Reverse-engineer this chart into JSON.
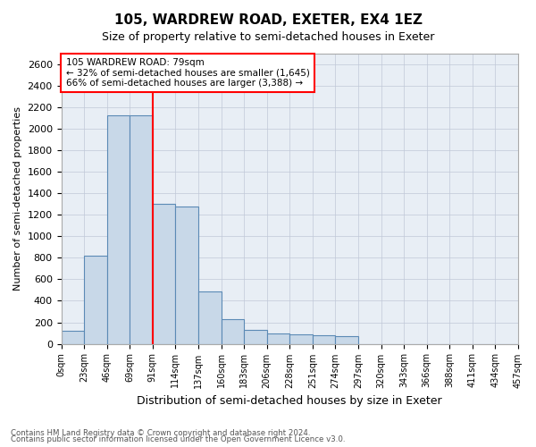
{
  "title": "105, WARDREW ROAD, EXETER, EX4 1EZ",
  "subtitle": "Size of property relative to semi-detached houses in Exeter",
  "xlabel": "Distribution of semi-detached houses by size in Exeter",
  "ylabel": "Number of semi-detached properties",
  "footer1": "Contains HM Land Registry data © Crown copyright and database right 2024.",
  "footer2": "Contains public sector information licensed under the Open Government Licence v3.0.",
  "bin_labels": [
    "0sqm",
    "23sqm",
    "46sqm",
    "69sqm",
    "91sqm",
    "114sqm",
    "137sqm",
    "160sqm",
    "183sqm",
    "206sqm",
    "228sqm",
    "251sqm",
    "274sqm",
    "297sqm",
    "320sqm",
    "343sqm",
    "366sqm",
    "388sqm",
    "411sqm",
    "434sqm",
    "457sqm"
  ],
  "bar_values": [
    120,
    820,
    2130,
    2130,
    1300,
    1280,
    490,
    230,
    130,
    100,
    90,
    80,
    70,
    0,
    0,
    0,
    0,
    0,
    0,
    0
  ],
  "ylim": [
    0,
    2700
  ],
  "yticks": [
    0,
    200,
    400,
    600,
    800,
    1000,
    1200,
    1400,
    1600,
    1800,
    2000,
    2200,
    2400,
    2600
  ],
  "bar_color": "#c8d8e8",
  "bar_edgecolor": "#5b8ab5",
  "property_line_x": 4,
  "annotation_text1": "105 WARDREW ROAD: 79sqm",
  "annotation_text2": "← 32% of semi-detached houses are smaller (1,645)",
  "annotation_text3": "66% of semi-detached houses are larger (3,388) →",
  "grid_color": "#c0c8d8",
  "bg_color": "#e8eef5"
}
